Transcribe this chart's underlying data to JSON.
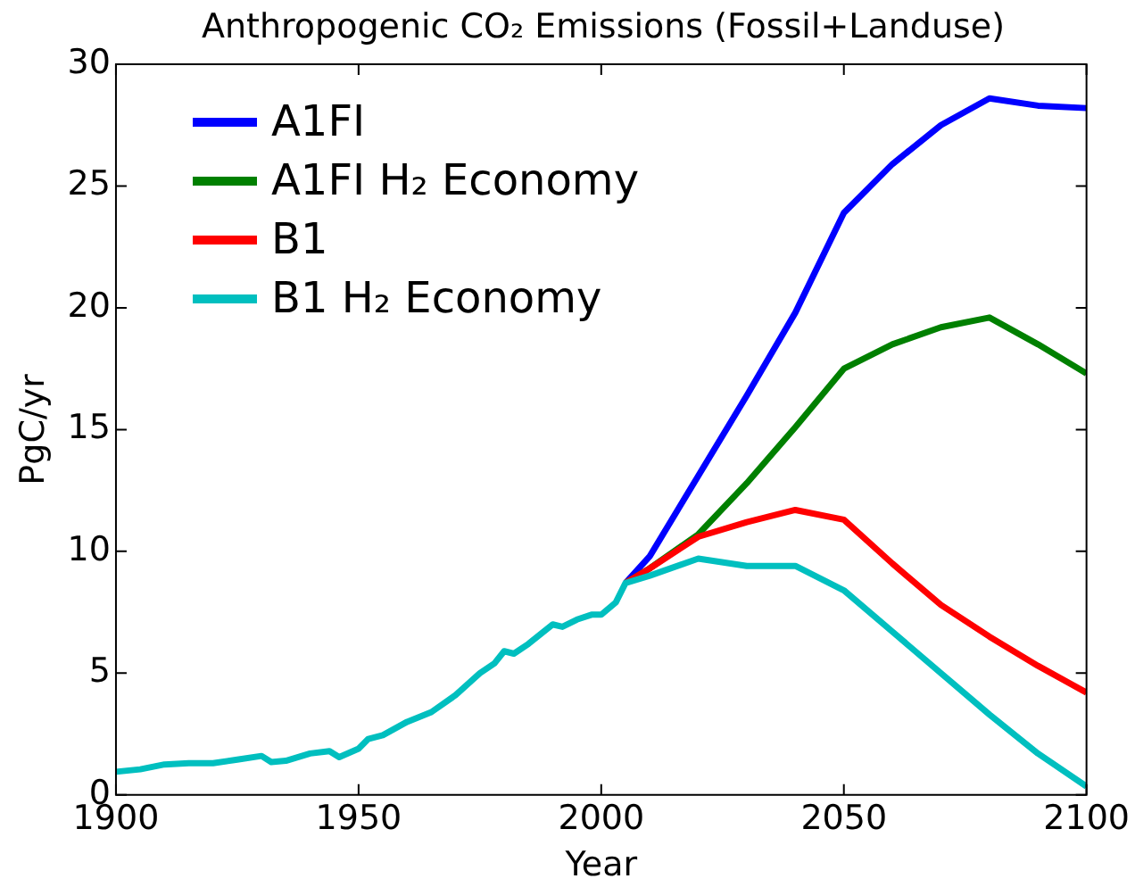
{
  "chart_data": {
    "type": "line",
    "title": "Anthropogenic CO₂ Emissions (Fossil+Landuse)",
    "xlabel": "Year",
    "ylabel": "PgC/yr",
    "xlim": [
      1900,
      2100
    ],
    "xticks": [
      1900,
      1950,
      2000,
      2050,
      2100
    ],
    "ylim": [
      0,
      30
    ],
    "yticks": [
      0,
      5,
      10,
      15,
      20,
      25,
      30
    ],
    "grid": false,
    "legend": "top left",
    "marker": "none",
    "line_style": "solid",
    "x": [
      2005,
      2010,
      2020,
      2030,
      2040,
      2050,
      2060,
      2070,
      2080,
      2090,
      2100
    ],
    "series": [
      {
        "name": "A1FI",
        "color": "#0000ff",
        "values": [
          8.7,
          9.8,
          13.1,
          16.4,
          19.8,
          23.9,
          25.9,
          27.5,
          28.6,
          28.3,
          28.2
        ]
      },
      {
        "name": "A1FI H₂ Economy",
        "color": "#008000",
        "values": [
          8.7,
          9.3,
          10.7,
          12.8,
          15.1,
          17.5,
          18.5,
          19.2,
          19.6,
          18.5,
          17.3
        ]
      },
      {
        "name": "B1",
        "color": "#ff0000",
        "values": [
          8.7,
          9.3,
          10.6,
          11.2,
          11.7,
          11.3,
          9.5,
          7.8,
          6.5,
          5.3,
          4.2
        ]
      },
      {
        "name": "B1 H₂ Economy",
        "color": "#00bfbf",
        "x": [
          1900,
          1905,
          1910,
          1915,
          1920,
          1925,
          1930,
          1932,
          1935,
          1940,
          1944,
          1946,
          1950,
          1952,
          1955,
          1960,
          1965,
          1970,
          1975,
          1978,
          1980,
          1982,
          1985,
          1990,
          1992,
          1995,
          1998,
          2000,
          2003,
          2005,
          2010,
          2020,
          2030,
          2040,
          2050,
          2060,
          2070,
          2080,
          2090,
          2100
        ],
        "values": [
          0.95,
          1.05,
          1.25,
          1.3,
          1.3,
          1.45,
          1.6,
          1.35,
          1.4,
          1.7,
          1.8,
          1.55,
          1.9,
          2.3,
          2.45,
          3.0,
          3.4,
          4.1,
          5.0,
          5.4,
          5.9,
          5.8,
          6.2,
          7.0,
          6.9,
          7.2,
          7.4,
          7.4,
          7.9,
          8.7,
          9.0,
          9.7,
          9.4,
          9.4,
          8.4,
          6.7,
          5.0,
          3.3,
          1.7,
          0.35
        ]
      }
    ]
  }
}
